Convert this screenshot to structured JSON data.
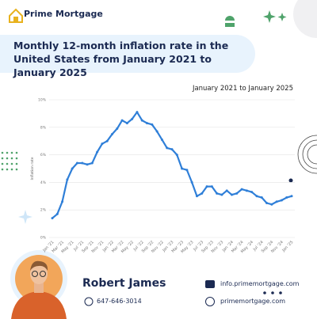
{
  "header": {
    "brand": "Prime Mortgage"
  },
  "chart_data": {
    "type": "line",
    "title": "Monthly 12-month inflation rate in the United States from January 2021 to January 2025",
    "subtitle": "January 2021 to January 2025",
    "y_label": "Inflation rate",
    "categories": [
      "Jan '21",
      null,
      "Mar '21",
      null,
      "May '21",
      null,
      "Jul '21",
      null,
      "Sep '21",
      null,
      "Nov '21",
      null,
      "Jan '22",
      null,
      "Mar '22",
      null,
      "May '22",
      null,
      "Jul '22",
      null,
      "Sep '22",
      null,
      "Nov '22",
      null,
      "Jan '23",
      null,
      "Mar '23",
      null,
      "May '23",
      null,
      "Jul '23",
      null,
      "Sep '23",
      null,
      "Nov '23",
      null,
      "Jan '24",
      null,
      "Mar '24",
      null,
      "May '24",
      null,
      "Jul '24",
      null,
      "Sep '24",
      null,
      "Nov '24",
      null,
      "Jan '25"
    ],
    "values": [
      1.4,
      1.7,
      2.6,
      4.2,
      5.0,
      5.4,
      5.4,
      5.3,
      5.4,
      6.2,
      6.8,
      7.0,
      7.5,
      7.9,
      8.5,
      8.3,
      8.6,
      9.1,
      8.5,
      8.3,
      8.2,
      7.7,
      7.1,
      6.5,
      6.4,
      6.0,
      5.0,
      4.9,
      4.0,
      3.0,
      3.2,
      3.7,
      3.7,
      3.2,
      3.1,
      3.4,
      3.1,
      3.2,
      3.5,
      3.4,
      3.3,
      3.0,
      2.9,
      2.5,
      2.4,
      2.6,
      2.7,
      2.9,
      3.0
    ],
    "color": "#2f7fd8",
    "ylim": [
      0,
      10
    ],
    "yticks": [
      {
        "value": 0,
        "label": "0%"
      },
      {
        "value": 2,
        "label": "2%"
      },
      {
        "value": 4,
        "label": "4%"
      },
      {
        "value": 6,
        "label": "6%"
      },
      {
        "value": 8,
        "label": "8%"
      },
      {
        "value": 10,
        "label": "10%"
      }
    ],
    "grid": true
  },
  "contact": {
    "name": "Robert James",
    "phone": "647-646-3014",
    "email": "info.primemortgage.com",
    "website": "primemortgage.com"
  }
}
